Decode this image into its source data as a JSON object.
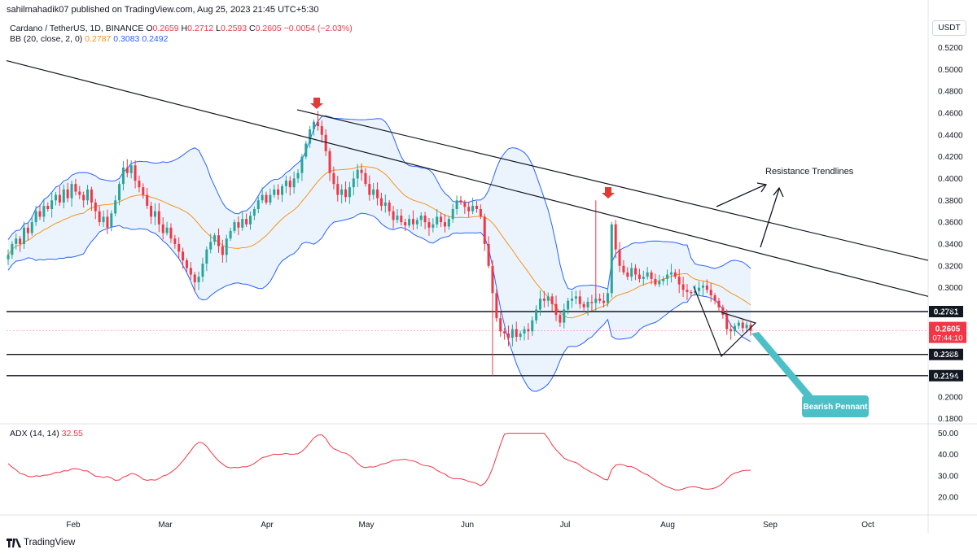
{
  "publisher": "sahilmahadik07 published on TradingView.com, Aug 25, 2023 21:45 UTC+5:30",
  "legend": {
    "symbol": "Cardano / TetherUS, 1D, BINANCE",
    "ohlc": [
      {
        "k": "O",
        "v": "0.2659"
      },
      {
        "k": "H",
        "v": "0.2712"
      },
      {
        "k": "L",
        "v": "0.2593"
      },
      {
        "k": "C",
        "v": "0.2605"
      }
    ],
    "change": "−0.0054 (−2.03%)",
    "bb_label": "BB (20, close, 2, 0)",
    "bb_values": [
      "0.2787",
      "0.3083",
      "0.2492"
    ],
    "adx_label": "ADX (14, 14)",
    "adx_value": "32.55"
  },
  "currency_button": "USDT",
  "footer": "TradingView",
  "colors": {
    "up": "#26a69a",
    "down": "#f23645",
    "bb_basis": "#f7931a",
    "bb_band": "#2962ff",
    "bb_fill": "#e3f0fc",
    "adx": "#f23645",
    "annotation": "#4dc0c7",
    "price_tag": "#f23645",
    "level_tag": "#131722"
  },
  "chart_data": [
    {
      "type": "candlestick",
      "title": "Cardano / TetherUS, 1D, BINANCE",
      "x_ticks": [
        "Feb",
        "Mar",
        "Apr",
        "May",
        "Jun",
        "Jul",
        "Aug",
        "Sep",
        "Oct"
      ],
      "y_ticks": [
        "0.5200",
        "0.5000",
        "0.4800",
        "0.4600",
        "0.4400",
        "0.4200",
        "0.4000",
        "0.3800",
        "0.3600",
        "0.3400",
        "0.3200",
        "0.3000",
        "0.2800",
        "0.2600",
        "0.2400",
        "0.2200",
        "0.2000",
        "0.1800"
      ],
      "ylim": [
        0.176,
        0.53
      ],
      "last_price": {
        "value": "0.2605",
        "countdown": "07:44:10"
      },
      "horizontal_levels": [
        {
          "value": 0.2781,
          "label": "0.2781"
        },
        {
          "value": 0.2388,
          "label": "0.2388"
        },
        {
          "value": 0.2194,
          "label": "0.2194"
        }
      ],
      "close_series": [
        0.33,
        0.34,
        0.345,
        0.34,
        0.355,
        0.35,
        0.36,
        0.37,
        0.365,
        0.375,
        0.372,
        0.38,
        0.385,
        0.378,
        0.39,
        0.382,
        0.395,
        0.388,
        0.385,
        0.38,
        0.39,
        0.378,
        0.37,
        0.36,
        0.365,
        0.355,
        0.368,
        0.38,
        0.395,
        0.41,
        0.405,
        0.412,
        0.398,
        0.392,
        0.385,
        0.375,
        0.365,
        0.37,
        0.358,
        0.35,
        0.355,
        0.345,
        0.34,
        0.333,
        0.325,
        0.318,
        0.312,
        0.305,
        0.31,
        0.322,
        0.335,
        0.342,
        0.348,
        0.338,
        0.33,
        0.345,
        0.352,
        0.36,
        0.355,
        0.363,
        0.358,
        0.366,
        0.372,
        0.38,
        0.385,
        0.378,
        0.385,
        0.39,
        0.385,
        0.393,
        0.398,
        0.392,
        0.4,
        0.405,
        0.42,
        0.432,
        0.445,
        0.452,
        0.448,
        0.44,
        0.425,
        0.405,
        0.395,
        0.385,
        0.39,
        0.383,
        0.392,
        0.4,
        0.408,
        0.405,
        0.395,
        0.385,
        0.39,
        0.382,
        0.375,
        0.378,
        0.37,
        0.362,
        0.366,
        0.36,
        0.357,
        0.363,
        0.358,
        0.362,
        0.366,
        0.36,
        0.355,
        0.358,
        0.365,
        0.36,
        0.356,
        0.363,
        0.372,
        0.38,
        0.378,
        0.374,
        0.37,
        0.375,
        0.372,
        0.365,
        0.34,
        0.32,
        0.295,
        0.272,
        0.26,
        0.258,
        0.254,
        0.262,
        0.255,
        0.258,
        0.262,
        0.26,
        0.27,
        0.28,
        0.29,
        0.288,
        0.292,
        0.285,
        0.275,
        0.268,
        0.28,
        0.288,
        0.29,
        0.292,
        0.285,
        0.282,
        0.287,
        0.286,
        0.29,
        0.288,
        0.286,
        0.295,
        0.358,
        0.335,
        0.32,
        0.314,
        0.31,
        0.318,
        0.312,
        0.308,
        0.31,
        0.314,
        0.308,
        0.303,
        0.306,
        0.308,
        0.312,
        0.314,
        0.31,
        0.303,
        0.298,
        0.296,
        0.295,
        0.297,
        0.3,
        0.302,
        0.298,
        0.293,
        0.288,
        0.282,
        0.275,
        0.262,
        0.26,
        0.265,
        0.268,
        0.263,
        0.266,
        0.2605
      ],
      "series": [
        {
          "name": "BB (20, close, 2, 0)",
          "values_last": {
            "basis": 0.2787,
            "upper": 0.3083,
            "lower": 0.2492
          }
        }
      ],
      "annotations": [
        "Resistance Trendlines",
        "Bearish Pennant"
      ]
    },
    {
      "type": "line",
      "title": "ADX (14, 14)",
      "y_ticks": [
        "50.00",
        "40.00",
        "30.00",
        "20.00"
      ],
      "ylim": [
        12,
        54
      ],
      "last_value": "32.55"
    }
  ]
}
